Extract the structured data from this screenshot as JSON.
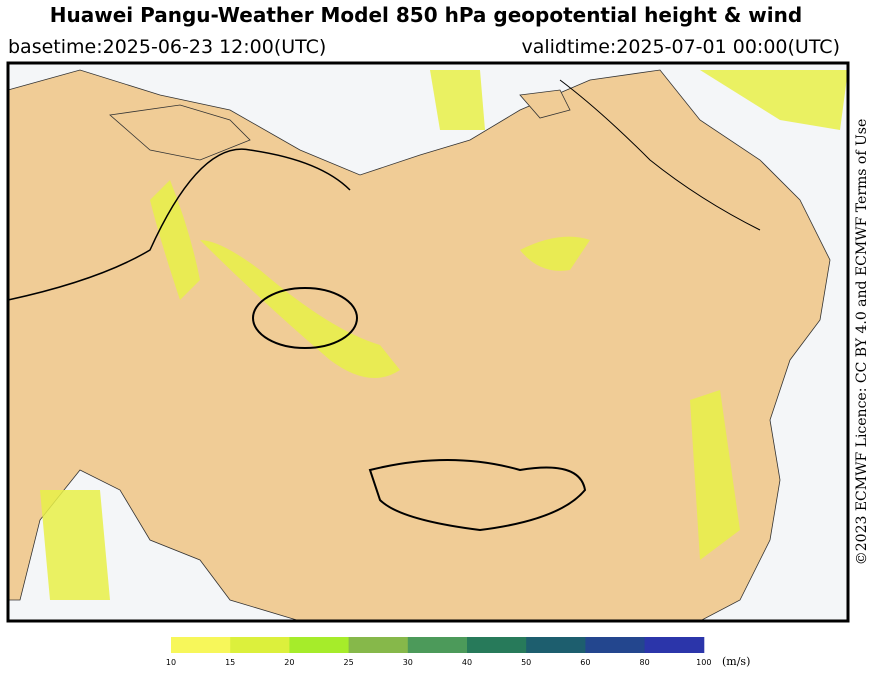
{
  "header": {
    "title": "Huawei Pangu-Weather Model 850 hPa geopotential height & wind",
    "basetime": "basetime:2025-06-23 12:00(UTC)",
    "validtime": "validtime:2025-07-01 00:00(UTC)"
  },
  "credit": "©2023 ECMWF Licence: CC BY 4.0 and ECMWF Terms of Use",
  "colorbar": {
    "ticks": [
      10,
      15,
      20,
      25,
      30,
      40,
      50,
      60,
      80,
      100
    ],
    "colors": [
      "#f7f75a",
      "#dcf03c",
      "#a6ec2a",
      "#86b84a",
      "#4c9a5a",
      "#277a5a",
      "#1d5e6e",
      "#23468e",
      "#2b35aa"
    ],
    "unit": "(m/s)"
  }
}
